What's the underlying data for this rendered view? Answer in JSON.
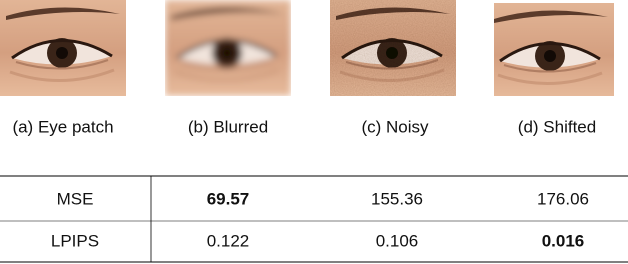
{
  "figure": {
    "captions": [
      "(a) Eye patch",
      "(b) Blurred",
      "(c) Noisy",
      "(d) Shifted"
    ],
    "table": {
      "rows": [
        {
          "label": "MSE",
          "values": [
            "69.57",
            "155.36",
            "176.06"
          ],
          "bold_column": 0
        },
        {
          "label": "LPIPS",
          "values": [
            "0.122",
            "0.106",
            "0.016"
          ],
          "bold_column": 2
        }
      ]
    }
  }
}
